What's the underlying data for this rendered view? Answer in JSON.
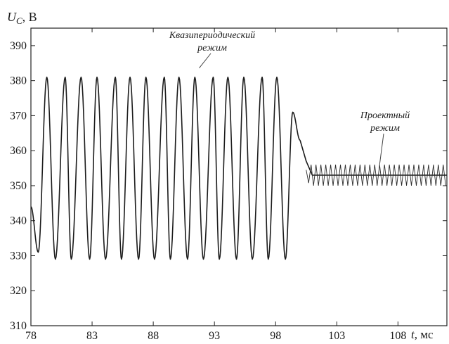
{
  "chart_data": {
    "type": "line",
    "ylabel_main": "U",
    "ylabel_sub": "C",
    "ylabel_unit": ", В",
    "xlabel_var": "t",
    "xlabel_unit": ", мс",
    "xlim": [
      78,
      112
    ],
    "ylim": [
      310,
      395
    ],
    "x_ticks": [
      78,
      83,
      88,
      93,
      98,
      103,
      108
    ],
    "y_ticks": [
      310,
      320,
      330,
      340,
      350,
      360,
      370,
      380,
      390
    ],
    "x_tick_labels": [
      "78",
      "83",
      "88",
      "93",
      "98",
      "103",
      "108"
    ],
    "y_tick_labels": [
      "310",
      "320",
      "330",
      "340",
      "350",
      "360",
      "370",
      "380",
      "390"
    ],
    "grid": false,
    "series": [
      {
        "regime": "quasiperiodic",
        "x": [
          78.0,
          78.6,
          79.3,
          80.0,
          80.8,
          81.3,
          82.1,
          82.8,
          83.4,
          84.1,
          84.9,
          85.4,
          86.1,
          86.8,
          87.4,
          88.1,
          88.9,
          89.4,
          90.1,
          90.8,
          91.4,
          92.1,
          92.9,
          93.4,
          94.1,
          94.8,
          95.4,
          96.1,
          96.9,
          97.4,
          98.1,
          98.8,
          99.4,
          100.0
        ],
        "y": [
          344,
          331,
          381,
          329,
          381,
          329,
          381,
          329,
          381,
          329,
          381,
          329,
          381,
          329,
          381,
          329,
          381,
          329,
          381,
          329,
          381,
          329,
          381,
          329,
          381,
          329,
          381,
          329,
          381,
          329,
          381,
          329,
          371,
          363
        ]
      },
      {
        "regime": "design",
        "x": [
          100.0,
          100.5,
          101.0,
          112.0
        ],
        "y": [
          363,
          357,
          353,
          353
        ],
        "ripple_amplitude": 3
      }
    ],
    "annotations": [
      {
        "line1": "Квазипериодический",
        "line2": "режим",
        "points_to": [
          97.5,
          382
        ]
      },
      {
        "line1": "Проектный",
        "line2": "режим",
        "points_to": [
          106.5,
          356
        ]
      }
    ]
  }
}
